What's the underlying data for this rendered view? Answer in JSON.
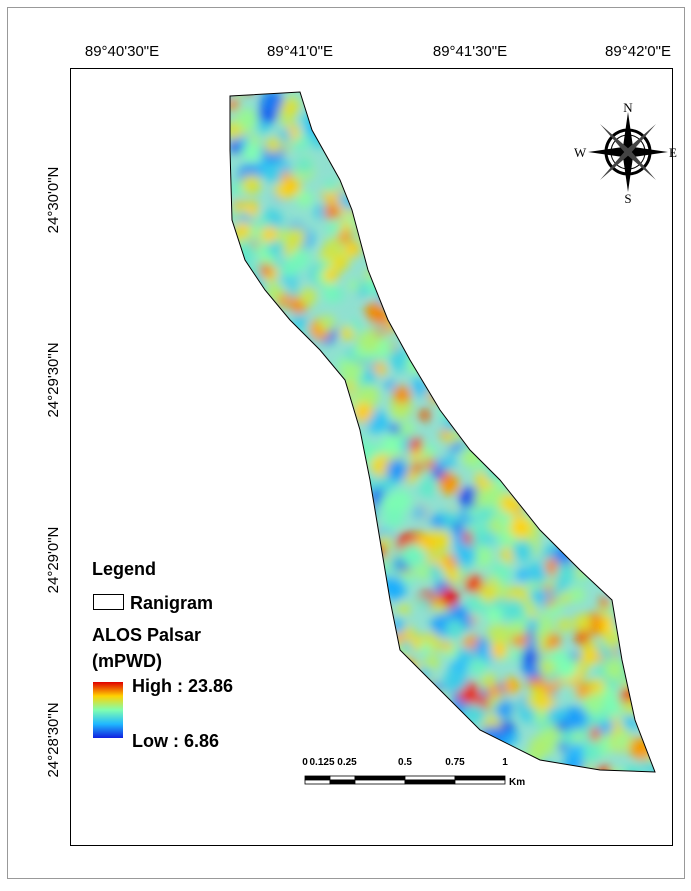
{
  "map": {
    "top_labels": [
      "89°40'30\"E",
      "89°41'0\"E",
      "89°41'30\"E",
      "89°42'0\"E"
    ],
    "left_labels": [
      "24°30'0\"N",
      "24°29'30\"N",
      "24°29'0\"N",
      "24°28'30\"N"
    ],
    "compass": {
      "n": "N",
      "s": "S",
      "e": "E",
      "w": "W"
    },
    "legend": {
      "title": "Legend",
      "boundary": "Ranigram",
      "layer_line1": "ALOS Palsar",
      "layer_line2": "(mPWD)",
      "high": "High : 23.86",
      "low": "Low : 6.86"
    },
    "scale_bar": {
      "labels": [
        "0",
        "0.125",
        "0.25",
        "0.5",
        "0.75",
        "1"
      ],
      "unit": "Km"
    }
  }
}
